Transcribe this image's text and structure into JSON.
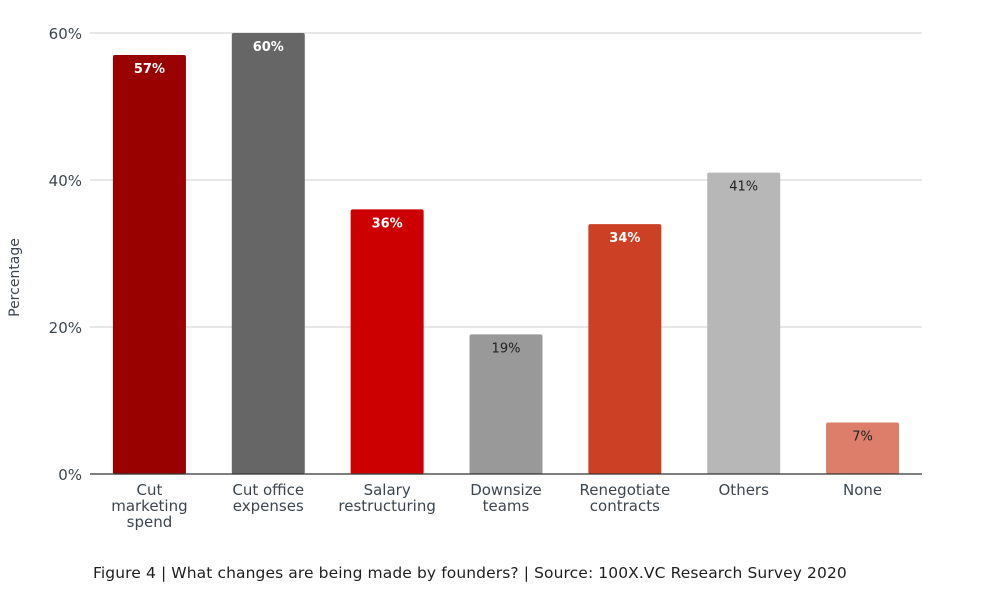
{
  "caption": "Figure 4 | What changes are being made by founders? | Source: 100X.VC Research Survey 2020",
  "chart_data": {
    "type": "bar",
    "title": "",
    "xlabel": "",
    "ylabel": "Percentage",
    "ylim": [
      0,
      60
    ],
    "yticks": [
      0,
      20,
      40,
      60
    ],
    "ytick_labels": [
      "0%",
      "20%",
      "40%",
      "60%"
    ],
    "grid": true,
    "legend": "none",
    "categories": [
      [
        "Cut",
        "marketing",
        "spend"
      ],
      [
        "Cut office",
        "expenses"
      ],
      [
        "Salary",
        "restructuring"
      ],
      [
        "Downsize",
        "teams"
      ],
      [
        "Renegotiate",
        "contracts"
      ],
      [
        "Others"
      ],
      [
        "None"
      ]
    ],
    "values": [
      57,
      60,
      36,
      19,
      34,
      41,
      7
    ],
    "data_labels": [
      "57%",
      "60%",
      "36%",
      "19%",
      "34%",
      "41%",
      "7%"
    ],
    "bar_colors": [
      "#990000",
      "#666666",
      "#cc0000",
      "#999999",
      "#cc4125",
      "#b7b7b7",
      "#dd7e6b"
    ],
    "label_colors": [
      "#ffffff",
      "#ffffff",
      "#ffffff",
      "#222222",
      "#ffffff",
      "#222222",
      "#222222"
    ],
    "grid_color": "#cfcfcf",
    "axis_color": "#333333",
    "text_color": "#3c4650"
  }
}
